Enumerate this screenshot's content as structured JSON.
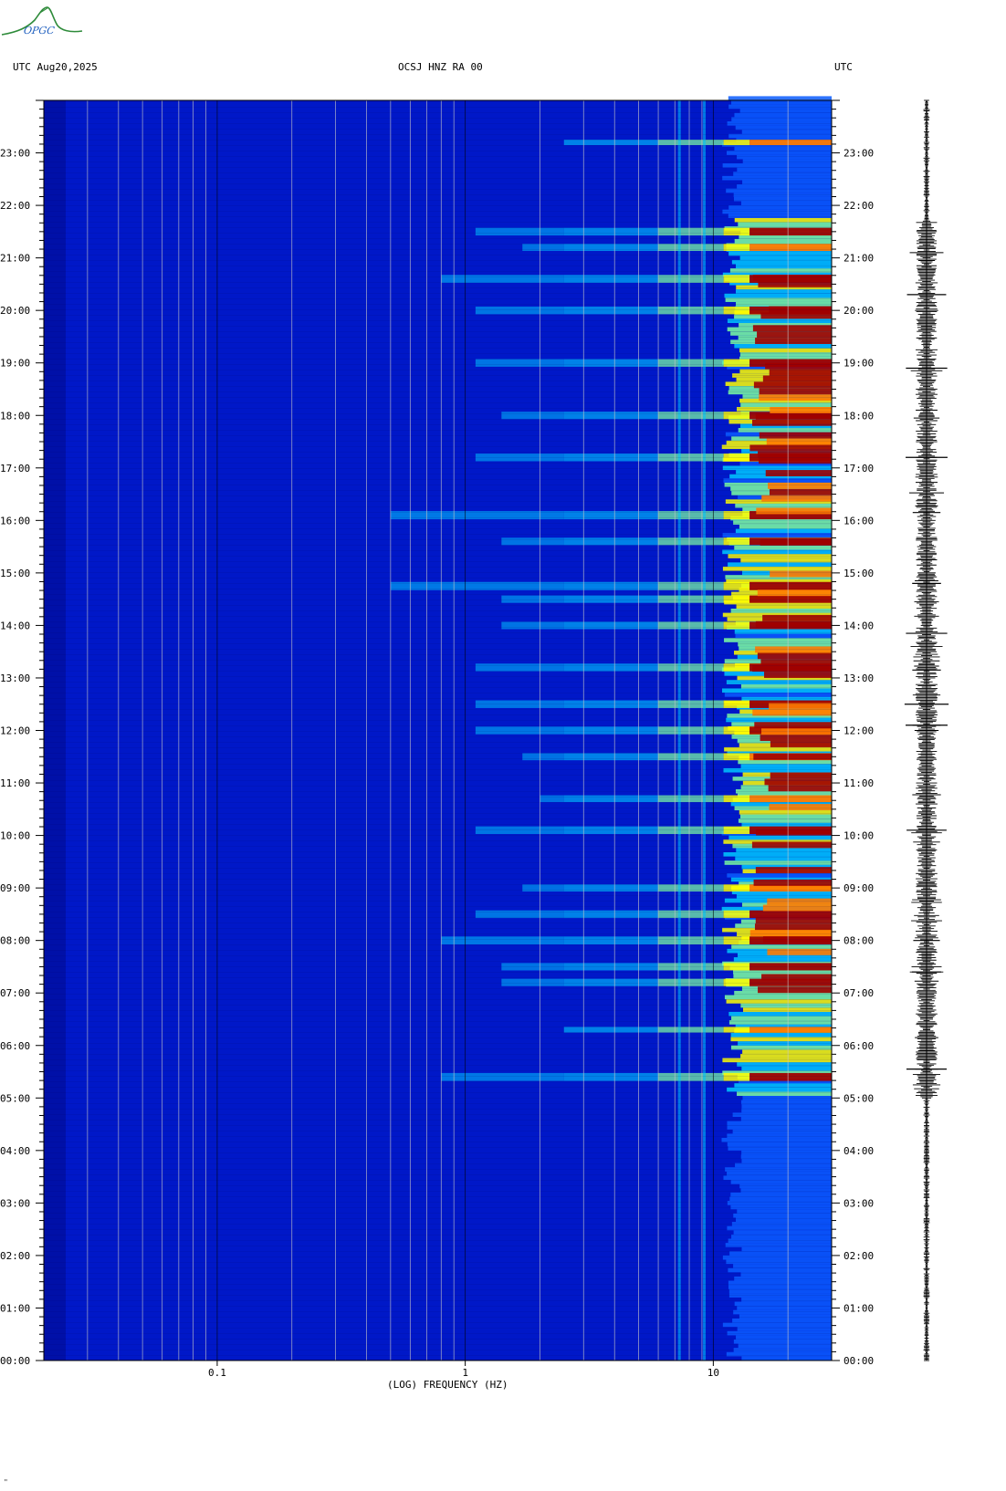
{
  "header": {
    "logo_text": "OPGC",
    "left": "UTC  Aug20,2025",
    "center": "OCSJ HNZ RA 00",
    "right": "UTC"
  },
  "corner_mark": "\"",
  "chart_data": {
    "type": "heatmap",
    "title": "OCSJ HNZ RA 00",
    "date": "Aug20,2025",
    "xlabel": "(LOG) FREQUENCY (HZ)",
    "x_scale": "log",
    "xlim": [
      0.02,
      30
    ],
    "x_ticks": [
      {
        "value": 0.1,
        "label": "0.1"
      },
      {
        "value": 1,
        "label": "1"
      },
      {
        "value": 10,
        "label": "10"
      }
    ],
    "y_axis": "time (UTC)",
    "ylim_hours": [
      0,
      24
    ],
    "y_ticks": [
      {
        "hour": 0,
        "label": "00:00"
      },
      {
        "hour": 1,
        "label": "01:00"
      },
      {
        "hour": 2,
        "label": "02:00"
      },
      {
        "hour": 3,
        "label": "03:00"
      },
      {
        "hour": 4,
        "label": "04:00"
      },
      {
        "hour": 5,
        "label": "05:00"
      },
      {
        "hour": 6,
        "label": "06:00"
      },
      {
        "hour": 7,
        "label": "07:00"
      },
      {
        "hour": 8,
        "label": "08:00"
      },
      {
        "hour": 9,
        "label": "09:00"
      },
      {
        "hour": 10,
        "label": "10:00"
      },
      {
        "hour": 11,
        "label": "11:00"
      },
      {
        "hour": 12,
        "label": "12:00"
      },
      {
        "hour": 13,
        "label": "13:00"
      },
      {
        "hour": 14,
        "label": "14:00"
      },
      {
        "hour": 15,
        "label": "15:00"
      },
      {
        "hour": 16,
        "label": "16:00"
      },
      {
        "hour": 17,
        "label": "17:00"
      },
      {
        "hour": 18,
        "label": "18:00"
      },
      {
        "hour": 19,
        "label": "19:00"
      },
      {
        "hour": 20,
        "label": "20:00"
      },
      {
        "hour": 21,
        "label": "21:00"
      },
      {
        "hour": 22,
        "label": "22:00"
      },
      {
        "hour": 23,
        "label": "23:00"
      }
    ],
    "colormap": [
      "#00007a",
      "#0022dd",
      "#0a5cff",
      "#00c8ff",
      "#7dffa0",
      "#ffff00",
      "#ff7a00",
      "#a00000"
    ],
    "background_color": "#0018c8",
    "active_hours": [
      5.0,
      21.7
    ],
    "peak_band_hz": [
      12,
      30
    ],
    "events": [
      {
        "hour": 5.4,
        "strength": 0.95
      },
      {
        "hour": 6.3,
        "strength": 0.55
      },
      {
        "hour": 7.2,
        "strength": 0.85
      },
      {
        "hour": 7.5,
        "strength": 0.85
      },
      {
        "hour": 8.0,
        "strength": 0.95
      },
      {
        "hour": 8.5,
        "strength": 0.9
      },
      {
        "hour": 9.0,
        "strength": 0.8
      },
      {
        "hour": 10.1,
        "strength": 0.9
      },
      {
        "hour": 10.7,
        "strength": 0.75
      },
      {
        "hour": 11.5,
        "strength": 0.8
      },
      {
        "hour": 12.0,
        "strength": 0.9
      },
      {
        "hour": 12.5,
        "strength": 0.9
      },
      {
        "hour": 13.2,
        "strength": 0.9
      },
      {
        "hour": 14.0,
        "strength": 0.85
      },
      {
        "hour": 14.5,
        "strength": 0.85
      },
      {
        "hour": 14.75,
        "strength": 1.0
      },
      {
        "hour": 15.6,
        "strength": 0.85
      },
      {
        "hour": 16.1,
        "strength": 1.0
      },
      {
        "hour": 17.2,
        "strength": 0.9
      },
      {
        "hour": 18.0,
        "strength": 0.85
      },
      {
        "hour": 19.0,
        "strength": 0.9
      },
      {
        "hour": 20.0,
        "strength": 0.9
      },
      {
        "hour": 20.6,
        "strength": 0.95
      },
      {
        "hour": 21.2,
        "strength": 0.8
      },
      {
        "hour": 21.5,
        "strength": 0.9
      },
      {
        "hour": 23.2,
        "strength": 0.5
      }
    ],
    "trace_events": [
      5.55,
      7.4,
      8.0,
      10.1,
      12.1,
      12.5,
      13.15,
      13.85,
      14.8,
      16.15,
      17.2,
      18.9,
      20.3
    ]
  }
}
